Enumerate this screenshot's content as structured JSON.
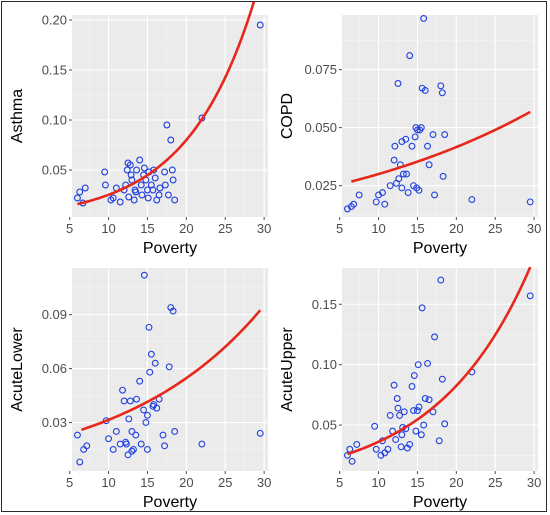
{
  "colors": {
    "points": "#1f3fe0",
    "fit": "#e8271b"
  },
  "chart_data": [
    {
      "type": "scatter",
      "xlabel": "Poverty",
      "ylabel": "Asthma",
      "xlim": [
        5.3,
        30.5
      ],
      "ylim": [
        0.003,
        0.205
      ],
      "xticks": [
        "5",
        "10",
        "15",
        "20",
        "25",
        "30"
      ],
      "xtick_values": [
        5,
        10,
        15,
        20,
        25,
        30
      ],
      "yticks": [
        "0.05",
        "0.10",
        "0.15",
        "0.20"
      ],
      "ytick_values": [
        0.05,
        0.1,
        0.15,
        0.2
      ],
      "fit": {
        "type": "exponential",
        "a": 0.00794,
        "b": 0.1155,
        "x_range": [
          6,
          29.5
        ]
      },
      "x": [
        6.0,
        6.3,
        6.7,
        7.0,
        9.5,
        9.6,
        10.3,
        10.6,
        11.0,
        11.5,
        12.0,
        12.2,
        12.4,
        12.5,
        12.6,
        12.8,
        12.9,
        13.0,
        13.3,
        13.4,
        13.5,
        13.6,
        14.0,
        14.2,
        14.3,
        14.5,
        14.6,
        14.8,
        15.0,
        15.1,
        15.2,
        15.5,
        15.7,
        15.8,
        16.0,
        16.2,
        16.5,
        16.6,
        17.2,
        17.3,
        17.5,
        17.7,
        18.0,
        18.2,
        18.3,
        18.5,
        22.0,
        29.5
      ],
      "y": [
        0.022,
        0.028,
        0.017,
        0.032,
        0.048,
        0.035,
        0.02,
        0.022,
        0.032,
        0.018,
        0.03,
        0.035,
        0.05,
        0.057,
        0.023,
        0.055,
        0.045,
        0.04,
        0.02,
        0.03,
        0.028,
        0.05,
        0.06,
        0.035,
        0.025,
        0.045,
        0.052,
        0.04,
        0.03,
        0.022,
        0.048,
        0.035,
        0.03,
        0.05,
        0.042,
        0.02,
        0.025,
        0.032,
        0.048,
        0.035,
        0.095,
        0.025,
        0.08,
        0.05,
        0.04,
        0.02,
        0.102,
        0.195
      ]
    },
    {
      "type": "scatter",
      "xlabel": "Poverty",
      "ylabel": "COPD",
      "xlim": [
        5.3,
        30.5
      ],
      "ylim": [
        0.0115,
        0.0985
      ],
      "xticks": [
        "5",
        "10",
        "15",
        "20",
        "25",
        "30"
      ],
      "xtick_values": [
        5,
        10,
        15,
        20,
        25,
        30
      ],
      "yticks": [
        "0.025",
        "0.050",
        "0.075"
      ],
      "ytick_values": [
        0.025,
        0.05,
        0.075
      ],
      "fit": {
        "type": "exponential",
        "a": 0.02164,
        "b": 0.0327,
        "x_range": [
          6.5,
          29.5
        ]
      },
      "x": [
        6.0,
        6.5,
        6.8,
        7.5,
        9.7,
        10.0,
        10.5,
        10.8,
        11.5,
        12.0,
        12.1,
        12.3,
        12.5,
        12.6,
        12.8,
        13.0,
        13.0,
        13.2,
        13.5,
        13.6,
        13.8,
        14.0,
        14.3,
        14.5,
        14.7,
        14.8,
        14.9,
        15.0,
        15.2,
        15.3,
        15.5,
        15.6,
        15.8,
        16.0,
        16.3,
        16.5,
        17.0,
        17.2,
        18.0,
        18.2,
        18.3,
        18.5,
        22.0,
        29.5
      ],
      "y": [
        0.015,
        0.016,
        0.017,
        0.021,
        0.018,
        0.021,
        0.022,
        0.017,
        0.025,
        0.036,
        0.042,
        0.026,
        0.069,
        0.028,
        0.034,
        0.044,
        0.024,
        0.03,
        0.045,
        0.03,
        0.022,
        0.081,
        0.042,
        0.025,
        0.046,
        0.05,
        0.024,
        0.049,
        0.023,
        0.049,
        0.05,
        0.067,
        0.097,
        0.066,
        0.042,
        0.034,
        0.047,
        0.021,
        0.068,
        0.065,
        0.029,
        0.047,
        0.019,
        0.018
      ]
    },
    {
      "type": "scatter",
      "xlabel": "Poverty",
      "ylabel": "AcuteLower",
      "xlim": [
        5.3,
        30.5
      ],
      "ylim": [
        0.003,
        0.116
      ],
      "xticks": [
        "5",
        "10",
        "15",
        "20",
        "25",
        "30"
      ],
      "xtick_values": [
        5,
        10,
        15,
        20,
        25,
        30
      ],
      "yticks": [
        "0.03",
        "0.06",
        "0.09"
      ],
      "ytick_values": [
        0.03,
        0.06,
        0.09
      ],
      "fit": {
        "type": "exponential",
        "a": 0.0181,
        "b": 0.0553,
        "x_range": [
          6.5,
          29.5
        ]
      },
      "x": [
        6.0,
        6.3,
        6.8,
        7.2,
        9.7,
        10.0,
        10.6,
        11.0,
        11.5,
        11.8,
        12.0,
        12.2,
        12.3,
        12.5,
        12.6,
        12.8,
        13.0,
        13.0,
        13.2,
        13.5,
        13.6,
        14.0,
        14.2,
        14.5,
        14.6,
        14.8,
        15.0,
        15.0,
        15.2,
        15.3,
        15.5,
        15.7,
        15.8,
        16.0,
        16.2,
        16.5,
        17.0,
        17.2,
        17.8,
        18.0,
        18.3,
        18.5,
        22.0,
        29.5
      ],
      "y": [
        0.023,
        0.008,
        0.015,
        0.017,
        0.031,
        0.021,
        0.015,
        0.025,
        0.018,
        0.048,
        0.042,
        0.019,
        0.018,
        0.012,
        0.032,
        0.042,
        0.014,
        0.025,
        0.015,
        0.023,
        0.043,
        0.053,
        0.018,
        0.037,
        0.112,
        0.03,
        0.034,
        0.015,
        0.083,
        0.058,
        0.068,
        0.039,
        0.04,
        0.063,
        0.038,
        0.043,
        0.023,
        0.017,
        0.061,
        0.094,
        0.092,
        0.025,
        0.018,
        0.024
      ]
    },
    {
      "type": "scatter",
      "xlabel": "Poverty",
      "ylabel": "AcuteUpper",
      "xlim": [
        5.3,
        30.5
      ],
      "ylim": [
        0.012,
        0.18
      ],
      "xticks": [
        "5",
        "10",
        "15",
        "20",
        "25",
        "30"
      ],
      "xtick_values": [
        5,
        10,
        15,
        20,
        25,
        30
      ],
      "yticks": [
        "0.05",
        "0.10",
        "0.15"
      ],
      "ytick_values": [
        0.05,
        0.1,
        0.15
      ],
      "fit": {
        "type": "exponential",
        "a": 0.01585,
        "b": 0.0825,
        "x_range": [
          6,
          29.5
        ]
      },
      "x": [
        6.0,
        6.3,
        6.6,
        7.2,
        9.5,
        9.7,
        10.3,
        10.5,
        10.8,
        11.2,
        11.5,
        11.8,
        12.0,
        12.2,
        12.4,
        12.5,
        12.7,
        12.9,
        13.0,
        13.1,
        13.3,
        13.5,
        13.7,
        14.0,
        14.3,
        14.5,
        14.6,
        14.8,
        15.0,
        15.1,
        15.2,
        15.5,
        15.6,
        15.8,
        16.0,
        16.3,
        16.5,
        17.0,
        17.2,
        17.8,
        18.0,
        18.2,
        18.5,
        22.0,
        29.5
      ],
      "y": [
        0.025,
        0.03,
        0.02,
        0.034,
        0.049,
        0.03,
        0.025,
        0.037,
        0.027,
        0.03,
        0.058,
        0.045,
        0.083,
        0.038,
        0.072,
        0.064,
        0.058,
        0.032,
        0.042,
        0.048,
        0.061,
        0.047,
        0.031,
        0.034,
        0.082,
        0.062,
        0.091,
        0.045,
        0.062,
        0.1,
        0.065,
        0.042,
        0.147,
        0.05,
        0.072,
        0.101,
        0.071,
        0.061,
        0.123,
        0.037,
        0.17,
        0.088,
        0.051,
        0.094,
        0.157
      ]
    }
  ]
}
